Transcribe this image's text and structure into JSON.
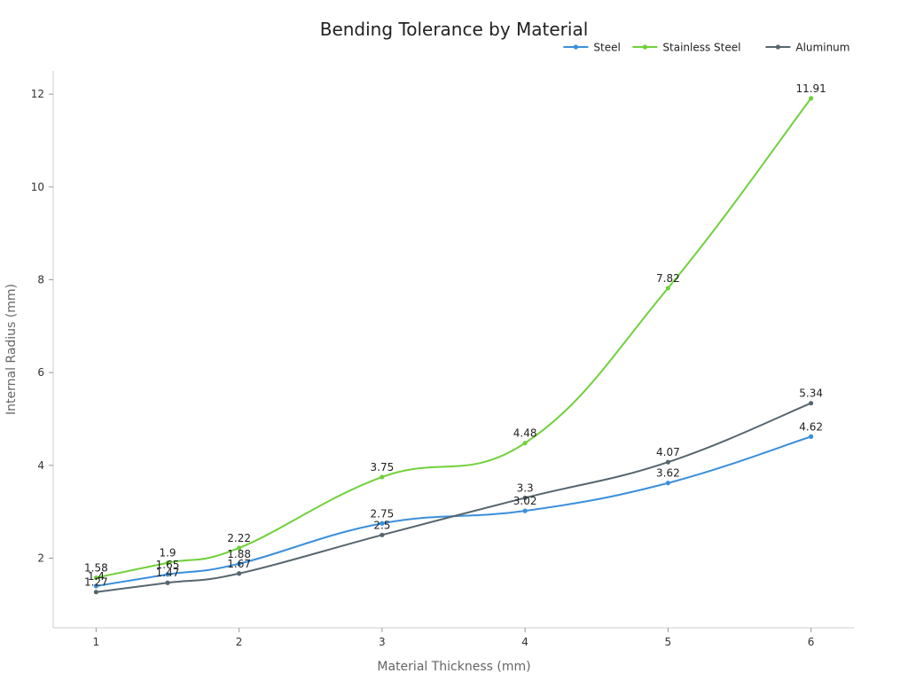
{
  "chart_data": {
    "type": "line",
    "title": "Bending Tolerance by Material",
    "xlabel": "Material Thickness (mm)",
    "ylabel": "Internal Radius (mm)",
    "x_ticks": [
      1,
      2,
      3,
      4,
      5,
      6
    ],
    "y_ticks": [
      2,
      4,
      6,
      8,
      10,
      12
    ],
    "xlim": [
      0.7,
      6.3
    ],
    "ylim": [
      0.5,
      12.5
    ],
    "grid": false,
    "legend_position": "top-right",
    "series": [
      {
        "name": "Steel",
        "color": "#3a8fdb",
        "x": [
          1,
          1.5,
          2,
          3,
          4,
          5,
          6
        ],
        "y": [
          1.4,
          1.65,
          1.88,
          2.75,
          3.02,
          3.62,
          4.62
        ]
      },
      {
        "name": "Stainless Steel",
        "color": "#6fd13a",
        "x": [
          1,
          1.5,
          2,
          3,
          4,
          5,
          6
        ],
        "y": [
          1.58,
          1.9,
          2.22,
          3.75,
          4.48,
          7.82,
          11.91
        ]
      },
      {
        "name": "Aluminum",
        "color": "#56666f",
        "x": [
          1,
          1.5,
          2,
          3,
          4,
          5,
          6
        ],
        "y": [
          1.27,
          1.47,
          1.67,
          2.5,
          3.3,
          4.07,
          5.34
        ]
      }
    ]
  }
}
